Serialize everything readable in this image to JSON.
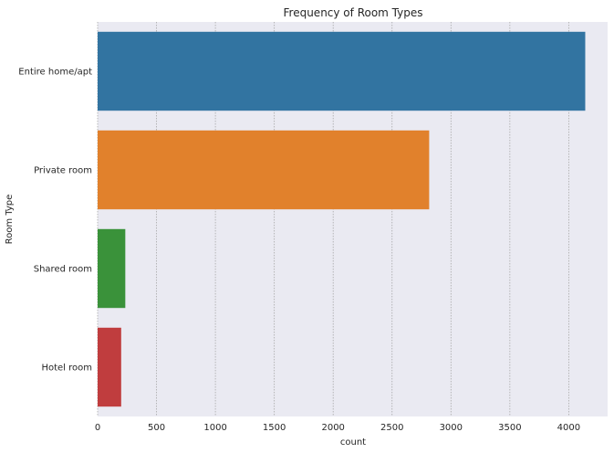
{
  "chart_data": {
    "type": "bar",
    "orientation": "horizontal",
    "title": "Frequency of Room Types",
    "xlabel": "count",
    "ylabel": "Room Type",
    "categories": [
      "Entire home/apt",
      "Private room",
      "Shared room",
      "Hotel room"
    ],
    "values": [
      4140,
      2815,
      235,
      200
    ],
    "colors": [
      "#3274a1",
      "#e1812c",
      "#3a923a",
      "#c03d3e"
    ],
    "xlim": [
      0,
      4330
    ],
    "xticks": [
      0,
      500,
      1000,
      1500,
      2000,
      2500,
      3000,
      3500,
      4000
    ],
    "grid": true,
    "background_color": "#eaeaf2"
  }
}
